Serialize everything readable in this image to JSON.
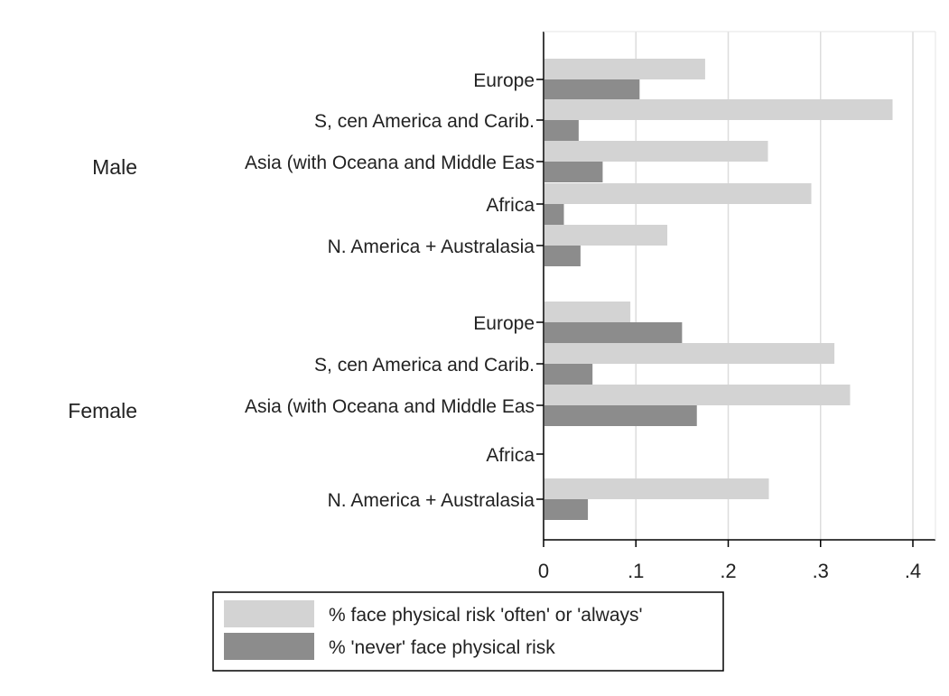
{
  "chart_data": {
    "type": "bar",
    "orientation": "horizontal",
    "title": "",
    "xlabel": "",
    "ylabel": "",
    "xlim": [
      0,
      0.42
    ],
    "x_ticks": [
      {
        "value": 0,
        "label": "0"
      },
      {
        "value": 0.1,
        "label": ".1"
      },
      {
        "value": 0.2,
        "label": ".2"
      },
      {
        "value": 0.3,
        "label": ".3"
      },
      {
        "value": 0.4,
        "label": ".4"
      }
    ],
    "grid": true,
    "legend_position": "bottom",
    "groups": [
      {
        "name": "Male",
        "categories": [
          "Europe",
          "S, cen America and Carib.",
          "Asia (with Oceana and Middle Eas",
          "Africa",
          "N. America + Australasia"
        ]
      },
      {
        "name": "Female",
        "categories": [
          "Europe",
          "S, cen America and Carib.",
          "Asia (with Oceana and Middle Eas",
          "Africa",
          "N. America + Australasia"
        ]
      }
    ],
    "series": [
      {
        "name": "% face physical risk 'often' or 'always'",
        "color": "#d3d3d3",
        "values": [
          [
            0.175,
            0.378,
            0.243,
            0.29,
            0.134
          ],
          [
            0.094,
            0.315,
            0.332,
            null,
            0.244
          ]
        ]
      },
      {
        "name": "% 'never' face physical risk",
        "color": "#8c8c8c",
        "values": [
          [
            0.104,
            0.038,
            0.064,
            0.022,
            0.04
          ],
          [
            0.15,
            0.053,
            0.166,
            null,
            0.048
          ]
        ]
      }
    ]
  }
}
